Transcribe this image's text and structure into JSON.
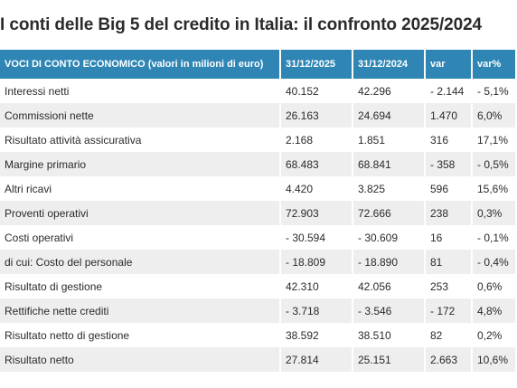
{
  "title": "I conti delle Big 5 del credito in Italia: il confronto 2025/2024",
  "table": {
    "headers": [
      "VOCI DI CONTO ECONOMICO (valori in milioni di euro)",
      "31/12/2025",
      "31/12/2024",
      "var",
      "var%"
    ],
    "rows": [
      [
        "Interessi netti",
        "40.152",
        "42.296",
        "- 2.144",
        "- 5,1%"
      ],
      [
        "Commissioni nette",
        "26.163",
        "24.694",
        "1.470",
        "6,0%"
      ],
      [
        "Risultato attività assicurativa",
        "2.168",
        "1.851",
        "316",
        "17,1%"
      ],
      [
        "Margine primario",
        "68.483",
        "68.841",
        "- 358",
        "- 0,5%"
      ],
      [
        "Altri ricavi",
        "4.420",
        "3.825",
        "596",
        "15,6%"
      ],
      [
        "Proventi operativi",
        "72.903",
        "72.666",
        "238",
        "0,3%"
      ],
      [
        "Costi operativi",
        "- 30.594",
        "- 30.609",
        "16",
        "- 0,1%"
      ],
      [
        "di cui: Costo del personale",
        "- 18.809",
        "- 18.890",
        "81",
        "- 0,4%"
      ],
      [
        "Risultato di gestione",
        "42.310",
        "42.056",
        "253",
        "0,6%"
      ],
      [
        "Rettifiche nette crediti",
        "- 3.718",
        "- 3.546",
        "- 172",
        "4,8%"
      ],
      [
        "Risultato netto di gestione",
        "38.592",
        "38.510",
        "82",
        "0,2%"
      ],
      [
        "Risultato netto",
        "27.814",
        "25.151",
        "2.663",
        "10,6%"
      ]
    ]
  },
  "colors": {
    "header_bg": "#2f86b5",
    "header_text": "#ffffff",
    "row_alt_bg": "#eeeeee"
  }
}
